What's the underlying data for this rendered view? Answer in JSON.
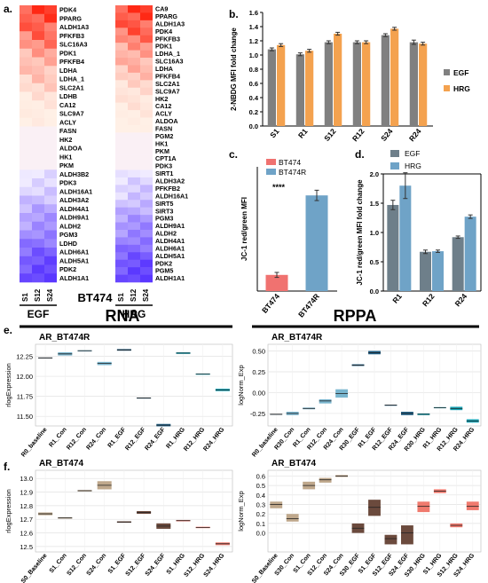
{
  "panel_letters": {
    "a": "a.",
    "b": "b.",
    "c": "c.",
    "d": "d.",
    "e": "e.",
    "f": "f."
  },
  "heatmap": {
    "left_genes": [
      "PDK4",
      "PPARG",
      "ALDH1A3",
      "PFKFB3",
      "SLC16A3",
      "PDK1",
      "PFKFB4",
      "LDHA",
      "LDHA_1",
      "SLC2A1",
      "LDHB",
      "CA12",
      "SLC9A7",
      "ACLY",
      "FASN",
      "HK2",
      "ALDOA",
      "HK1",
      "PKM",
      "ALDH3B2",
      "PDK3",
      "ALDH16A1",
      "ALDH3A2",
      "ALDH4A1",
      "ALDH9A1",
      "ALDH2",
      "PGM3",
      "LDHD",
      "ALDH6A1",
      "ALDH5A1",
      "PDK2",
      "ALDH1A1"
    ],
    "right_genes": [
      "CA9",
      "PPARG",
      "ALDH1A3",
      "PDK4",
      "PFKFB3",
      "PDK1",
      "LDHA_1",
      "SLC16A3",
      "LDHA",
      "PFKFB4",
      "SLC2A1",
      "SLC9A7",
      "HK2",
      "CA12",
      "ACLY",
      "ALDOA",
      "FASN",
      "PGM2",
      "HK1",
      "PKM",
      "CPT1A",
      "PDK3",
      "SIRT1",
      "ALDH3A2",
      "PFKFB2",
      "ALDH16A1",
      "SIRT5",
      "SIRT3",
      "PGM3",
      "ALDH9A1",
      "ALDH2",
      "ALDH4A1",
      "ALDH6A1",
      "ALDH5A1",
      "PDK2",
      "PGM5",
      "ALDH1A1"
    ],
    "left_samples": [
      "S1",
      "S12",
      "S24"
    ],
    "right_samples": [
      "S1",
      "S12",
      "S24"
    ],
    "left_group": "EGF",
    "right_group": "HRG",
    "center_label": "BT474"
  },
  "chart_data": [
    {
      "panel": "b",
      "type": "bar",
      "categories": [
        "S1",
        "R1",
        "S12",
        "R12",
        "S24",
        "R24"
      ],
      "series": [
        {
          "name": "EGF",
          "values": [
            1.08,
            1.01,
            1.18,
            1.18,
            1.28,
            1.18
          ],
          "errors": [
            0.02,
            0.02,
            0.02,
            0.02,
            0.02,
            0.03
          ],
          "color": "#808080"
        },
        {
          "name": "HRG",
          "values": [
            1.14,
            1.06,
            1.3,
            1.18,
            1.37,
            1.16
          ],
          "errors": [
            0.02,
            0.02,
            0.02,
            0.02,
            0.02,
            0.02
          ],
          "color": "#f4a24f"
        }
      ],
      "ylabel": "2-NBDG MFI fold change",
      "yticks": [
        "0.0",
        "0.2",
        "0.4",
        "0.6",
        "0.8",
        "1.0",
        "1.2",
        "1.4",
        "1.6"
      ],
      "ylim": [
        0,
        1.6
      ],
      "legend": "right"
    },
    {
      "panel": "c",
      "type": "bar",
      "categories": [
        "BT474",
        "BT474R"
      ],
      "values": [
        0.78,
        4.62
      ],
      "errors": [
        0.12,
        0.25
      ],
      "colors": [
        "#f07270",
        "#6fa3c7"
      ],
      "legend": [
        "BT474",
        "BT474R"
      ],
      "annotation": "****",
      "ylabel": "JC-1 red/green MFI",
      "ylim": [
        0,
        6
      ]
    },
    {
      "panel": "d",
      "type": "bar",
      "categories": [
        "R1",
        "R12",
        "R24"
      ],
      "series": [
        {
          "name": "EGF",
          "values": [
            1.47,
            0.67,
            0.92
          ],
          "errors": [
            0.08,
            0.03,
            0.02
          ],
          "color": "#6e7f8a"
        },
        {
          "name": "HRG",
          "values": [
            1.8,
            0.68,
            1.27
          ],
          "errors": [
            0.22,
            0.02,
            0.03
          ],
          "color": "#6fa3c7"
        }
      ],
      "ylabel": "JC-1 red/green MFI fold change",
      "yticks": [
        "0.0",
        "0.5",
        "1.0",
        "1.5",
        "2.0"
      ],
      "ylim": [
        0,
        2.0
      ],
      "legend": "top-left"
    },
    {
      "panel": "e-left",
      "type": "box",
      "section": "RNA",
      "title": "AR_BT474R",
      "ylabel": "rlogExpression",
      "yticks": [
        "11.50",
        "11.75",
        "12.00",
        "12.25"
      ],
      "ylim": [
        11.38,
        12.4
      ],
      "categories": [
        "R0_baseline",
        "R1_Con",
        "R12_Con",
        "R24_Con",
        "R1_EGF",
        "R12_EGF",
        "R24_EGF",
        "R1_HRG",
        "R12_HRG",
        "R24_HRG"
      ],
      "medians": [
        12.23,
        12.28,
        12.32,
        12.16,
        12.33,
        11.73,
        11.39,
        12.29,
        12.03,
        11.83
      ],
      "q1": [
        12.225,
        12.26,
        12.31,
        12.14,
        12.32,
        11.725,
        11.375,
        12.28,
        12.02,
        11.815
      ],
      "q3": [
        12.235,
        12.3,
        12.325,
        12.18,
        12.34,
        11.735,
        11.405,
        12.3,
        12.035,
        11.845
      ],
      "colors": [
        "#7a8c9a",
        "#7ab6cf",
        "#7ab6cf",
        "#7ab6cf",
        "#1f5f86",
        "#1f5f86",
        "#1f5f86",
        "#17a6b8",
        "#17a6b8",
        "#17a6b8"
      ]
    },
    {
      "panel": "e-right",
      "type": "box",
      "section": "RPPA",
      "title": "AR_BT474R",
      "ylabel": "logNorm_Exp",
      "yticks": [
        "-0.25",
        "0.00",
        "0.25",
        "0.50"
      ],
      "ylim": [
        -0.4,
        0.58
      ],
      "categories": [
        "R0_baseline",
        "R30_Con",
        "R1_Con",
        "R12_Con",
        "R24_Con",
        "R30_EGF",
        "R1_EGF",
        "R12_EGF",
        "R24_EGF",
        "R30_HRG",
        "R1_HRG",
        "R12_HRG",
        "R24_HRG"
      ],
      "medians": [
        -0.26,
        -0.25,
        -0.19,
        -0.1,
        -0.01,
        0.33,
        0.48,
        -0.15,
        -0.25,
        -0.26,
        -0.18,
        -0.19,
        -0.34
      ],
      "q1": [
        -0.265,
        -0.27,
        -0.2,
        -0.13,
        -0.06,
        0.32,
        0.46,
        -0.155,
        -0.27,
        -0.27,
        -0.185,
        -0.21,
        -0.36
      ],
      "q3": [
        -0.255,
        -0.23,
        -0.18,
        -0.08,
        0.04,
        0.34,
        0.5,
        -0.145,
        -0.23,
        -0.25,
        -0.175,
        -0.17,
        -0.32
      ],
      "colors": [
        "#7a8c9a",
        "#7ab6cf",
        "#7ab6cf",
        "#7ab6cf",
        "#7ab6cf",
        "#1f5f86",
        "#1f5f86",
        "#1f5f86",
        "#1f5f86",
        "#17a6b8",
        "#17a6b8",
        "#17a6b8",
        "#17a6b8"
      ]
    },
    {
      "panel": "f-left",
      "type": "box",
      "title": "AR_BT474",
      "ylabel": "rlogExpression",
      "yticks": [
        "12.5",
        "12.6",
        "12.7",
        "12.8",
        "12.9",
        "13.0"
      ],
      "ylim": [
        12.46,
        13.06
      ],
      "categories": [
        "S0_Baseline",
        "S1_Con",
        "S12_Con",
        "S24_Con",
        "S1_EGF",
        "S12_EGF",
        "S24_EGF",
        "S1_HRG",
        "S12_HRG",
        "S24_HRG"
      ],
      "medians": [
        12.74,
        12.71,
        12.91,
        12.95,
        12.68,
        12.75,
        12.65,
        12.69,
        12.64,
        12.52
      ],
      "q1": [
        12.73,
        12.705,
        12.905,
        12.92,
        12.675,
        12.74,
        12.63,
        12.685,
        12.635,
        12.51
      ],
      "q3": [
        12.75,
        12.715,
        12.915,
        12.98,
        12.685,
        12.76,
        12.67,
        12.695,
        12.645,
        12.53
      ],
      "colors": [
        "#bfa88c",
        "#bfa88c",
        "#bfa88c",
        "#bfa88c",
        "#6b4a3d",
        "#6b4a3d",
        "#6b4a3d",
        "#f07a6e",
        "#f07a6e",
        "#f07a6e"
      ]
    },
    {
      "panel": "f-right",
      "type": "box",
      "title": "AR_BT474",
      "ylabel": "logNorm_Exp",
      "yticks": [
        "0.0",
        "0.1",
        "0.2",
        "0.3",
        "0.4",
        "0.5",
        "0.6"
      ],
      "ylim": [
        -0.2,
        0.66
      ],
      "categories": [
        "S0_Baseline",
        "S30_Con",
        "S1_Con",
        "S12_Con",
        "S24_Con",
        "S30_EGF",
        "S1_EGF",
        "S12_EGF",
        "S24_EGF",
        "S30_HRG",
        "S1_HRG",
        "S12_HRG",
        "S24_HRG"
      ],
      "medians": [
        0.3,
        0.15,
        0.5,
        0.56,
        0.6,
        0.05,
        0.27,
        -0.06,
        0.0,
        0.28,
        0.44,
        0.08,
        0.28
      ],
      "q1": [
        0.26,
        0.12,
        0.46,
        0.53,
        0.59,
        0.0,
        0.18,
        -0.12,
        -0.12,
        0.22,
        0.42,
        0.06,
        0.24
      ],
      "q3": [
        0.33,
        0.2,
        0.54,
        0.58,
        0.61,
        0.1,
        0.35,
        -0.02,
        0.08,
        0.33,
        0.46,
        0.1,
        0.33
      ],
      "colors": [
        "#bfa88c",
        "#bfa88c",
        "#bfa88c",
        "#bfa88c",
        "#bfa88c",
        "#6b4a3d",
        "#6b4a3d",
        "#6b4a3d",
        "#6b4a3d",
        "#f07a6e",
        "#f07a6e",
        "#f07a6e",
        "#f07a6e"
      ]
    }
  ]
}
